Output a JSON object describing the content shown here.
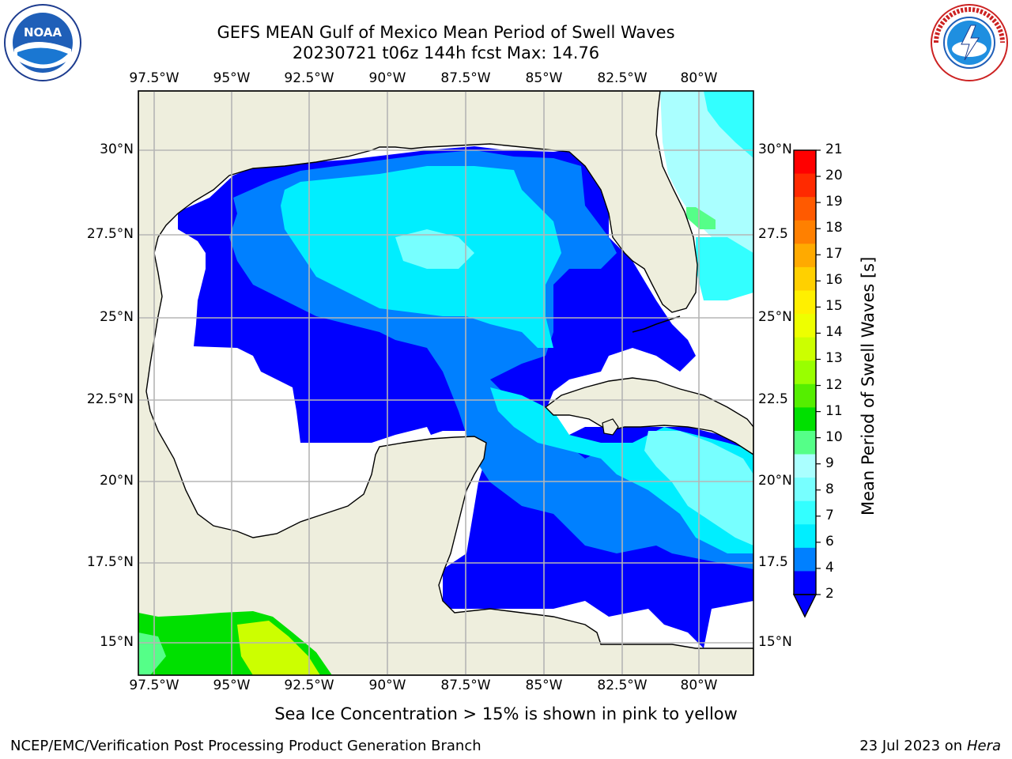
{
  "header": {
    "title_line1": "GEFS MEAN Gulf of Mexico Mean Period of Swell Waves",
    "title_line2": "20230721 t06z 144h fcst   Max: 14.76"
  },
  "logos": {
    "left": "NOAA",
    "left_ring": "NATIONAL OCEANIC AND ATMOSPHERIC ADMINISTRATION · U.S. DEPARTMENT OF COMMERCE",
    "right_ring": "NATIONAL WEATHER SERVICE"
  },
  "axes": {
    "lon_ticks": [
      "97.5°W",
      "95°W",
      "92.5°W",
      "90°W",
      "87.5°W",
      "85°W",
      "82.5°W",
      "80°W"
    ],
    "lat_ticks_left": [
      "30°N",
      "27.5°N",
      "25°N",
      "22.5°N",
      "20°N",
      "17.5°N",
      "15°N"
    ],
    "lat_ticks_right": [
      "30°N",
      "27.5",
      "25°N",
      "22.5",
      "20°N",
      "17.5",
      "15°N"
    ]
  },
  "colorbar": {
    "label": "Mean Period of Swell Waves [s]",
    "ticks": [
      "21",
      "20",
      "19",
      "18",
      "17",
      "16",
      "15",
      "14",
      "13",
      "12",
      "11",
      "10",
      "9",
      "8",
      "7",
      "6",
      "4",
      "2"
    ],
    "colors": [
      "#ff0000",
      "#ff2a00",
      "#ff5a00",
      "#ff8000",
      "#ffaa00",
      "#ffd000",
      "#fff000",
      "#eeff00",
      "#ccff00",
      "#99ff00",
      "#55ee00",
      "#00e000",
      "#55ff88",
      "#aaffff",
      "#77ffff",
      "#33ffff",
      "#00eeff",
      "#0080ff",
      "#0000ff"
    ],
    "extend_color": "#0000ff"
  },
  "map_colors": {
    "land": "#eeeedd",
    "ocean_nodata": "#ffffff",
    "coast": "#000000",
    "grid": "#b5b5b5"
  },
  "footer": {
    "note": "Sea Ice Concentration > 15% is shown in pink to yellow",
    "credit": "NCEP/EMC/Verification Post Processing Product Generation Branch",
    "date": "23 Jul 2023 on ",
    "machine": "Hera"
  }
}
